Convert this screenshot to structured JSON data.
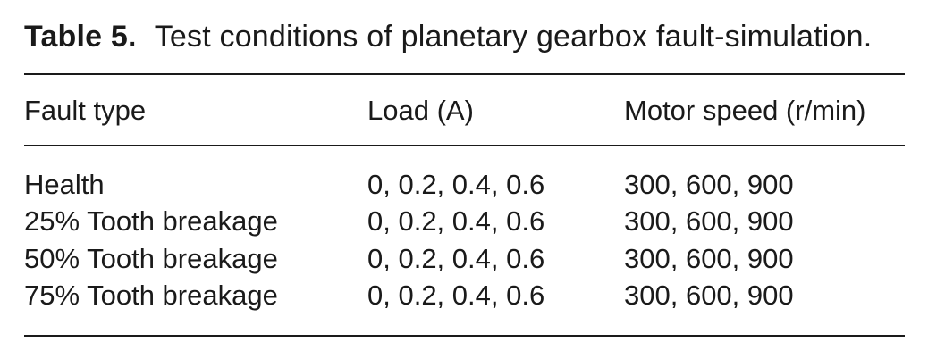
{
  "caption": {
    "label": "Table 5.",
    "text": "Test conditions of planetary gearbox fault-simulation."
  },
  "table": {
    "headers": [
      "Fault type",
      "Load (A)",
      "Motor speed (r/min)"
    ],
    "rows": [
      [
        "Health",
        "0, 0.2, 0.4, 0.6",
        "300, 600, 900"
      ],
      [
        "25% Tooth breakage",
        "0, 0.2, 0.4, 0.6",
        "300, 600, 900"
      ],
      [
        "50% Tooth breakage",
        "0, 0.2, 0.4, 0.6",
        "300, 600, 900"
      ],
      [
        "75% Tooth breakage",
        "0, 0.2, 0.4, 0.6",
        "300, 600, 900"
      ]
    ]
  }
}
